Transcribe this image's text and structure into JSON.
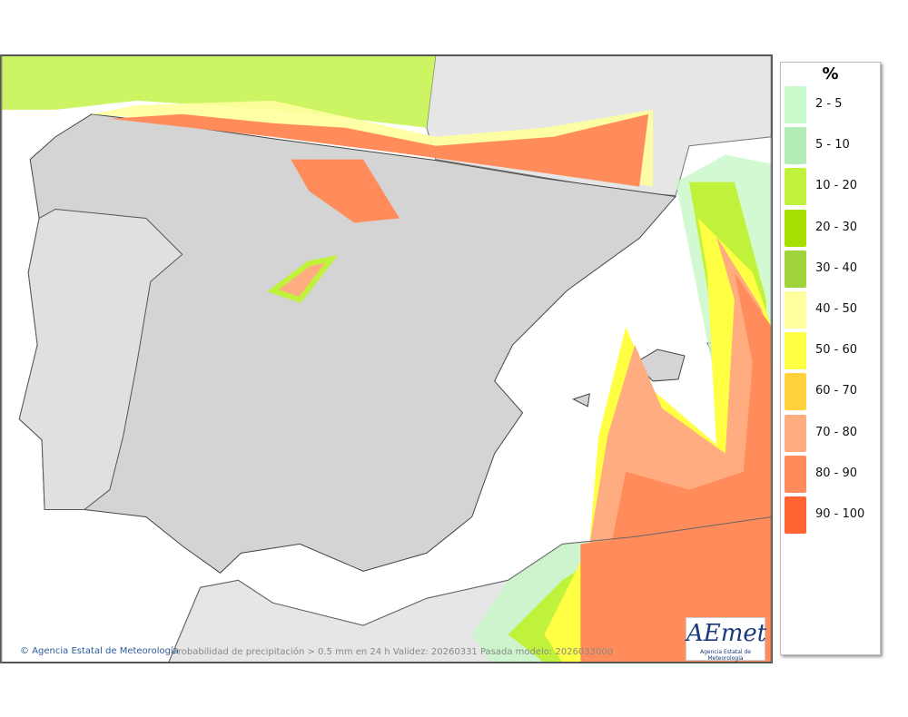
{
  "legend": {
    "unit": "%",
    "items": [
      {
        "label": "2 - 5",
        "color": "#c8facc"
      },
      {
        "label": "5 - 10",
        "color": "#b4ecb8"
      },
      {
        "label": "10 - 20",
        "color": "#c0f23c"
      },
      {
        "label": "20 - 30",
        "color": "#a6e000"
      },
      {
        "label": "30 - 40",
        "color": "#9ed43a"
      },
      {
        "label": "40 - 50",
        "color": "#ffff9e"
      },
      {
        "label": "50 - 60",
        "color": "#ffff44"
      },
      {
        "label": "60 - 70",
        "color": "#ffd23c"
      },
      {
        "label": "70 - 80",
        "color": "#ffac80"
      },
      {
        "label": "80 - 90",
        "color": "#ff8c5a"
      },
      {
        "label": "90 - 100",
        "color": "#ff6432"
      }
    ]
  },
  "footer": {
    "credit": "Agencia Estatal de Meteorología",
    "caption": "Probabilidad de precipitación > 0.5 mm en 24 h Validez: 20260331 Pasada modelo: 2026033000"
  },
  "logo": {
    "text": "AEmet",
    "subtitle": "Agencia Estatal de Meteorología"
  }
}
